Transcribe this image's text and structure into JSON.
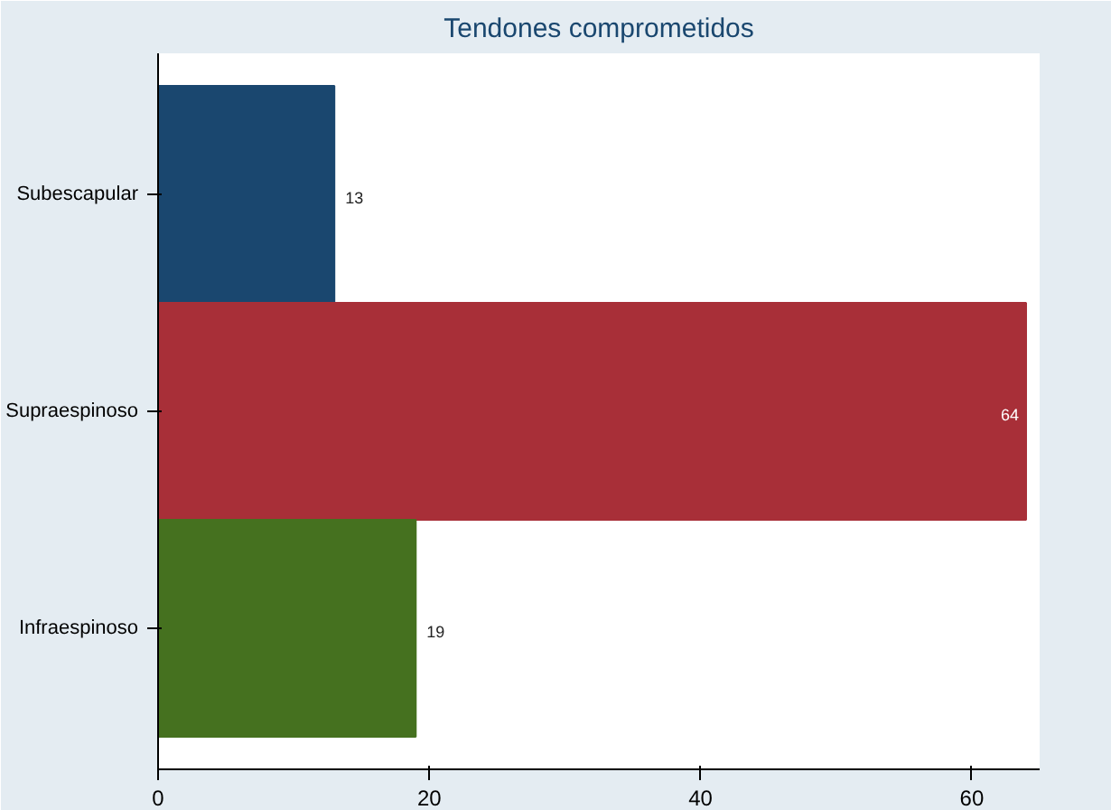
{
  "chart_data": {
    "type": "bar",
    "orientation": "horizontal",
    "title": "Tendones comprometidos",
    "categories": [
      "Subescapular",
      "Supraespinoso",
      "Infraespinoso"
    ],
    "values": [
      13,
      64,
      19
    ],
    "colors": [
      "#1a476f",
      "#a82f38",
      "#45711f"
    ],
    "xlim": [
      0,
      65
    ],
    "xticks": [
      0,
      20,
      40,
      60
    ],
    "grid": false,
    "data_labels": true
  }
}
